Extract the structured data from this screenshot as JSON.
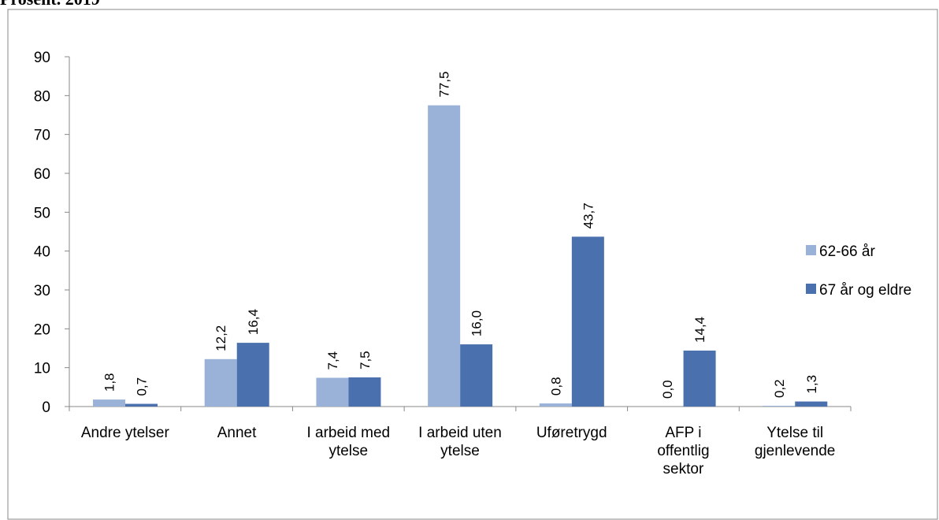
{
  "chart_data": {
    "type": "bar",
    "title": "Prosent. 2019",
    "categories": [
      "Andre ytelser",
      "Annet",
      "I arbeid med ytelse",
      "I arbeid uten ytelse",
      "Uføretrygd",
      "AFP i offentlig sektor",
      "Ytelse til gjenlevende"
    ],
    "series": [
      {
        "name": "62-66 år",
        "color": "#9bb2d8",
        "values": [
          1.8,
          12.2,
          7.4,
          77.5,
          0.8,
          0.0,
          0.2
        ],
        "value_labels": [
          "1,8",
          "12,2",
          "7,4",
          "77,5",
          "0,8",
          "0,0",
          "0,2"
        ]
      },
      {
        "name": "67 år og eldre",
        "color": "#4a70ad",
        "values": [
          0.7,
          16.4,
          7.5,
          16.0,
          43.7,
          14.4,
          1.3
        ],
        "value_labels": [
          "0,7",
          "16,4",
          "7,5",
          "16,0",
          "43,7",
          "14,4",
          "1,3"
        ]
      }
    ],
    "ylim": [
      0,
      90
    ],
    "yticks": [
      0,
      10,
      20,
      30,
      40,
      50,
      60,
      70,
      80,
      90
    ],
    "legend": "right"
  }
}
